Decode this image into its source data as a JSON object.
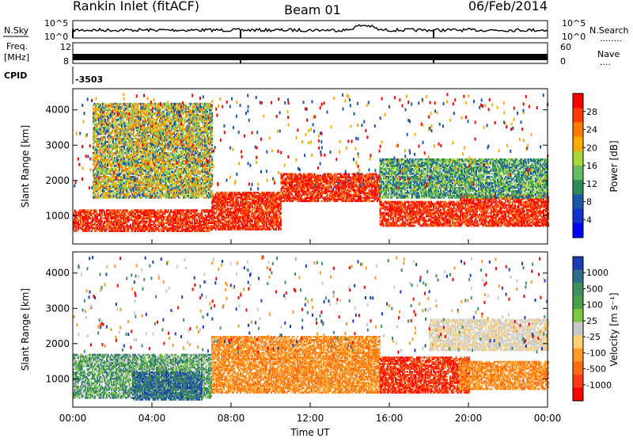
{
  "header": {
    "site": "Rankin Inlet (fitACF)",
    "beam": "Beam 01",
    "date": "06/Feb/2014"
  },
  "strip": {
    "nsky_label": "N.Sky",
    "nsky_ticks": [
      "10^5",
      "10^0"
    ],
    "nsearch_label": "N.Search",
    "nsearch_ticks": [
      "10^5",
      "10^0"
    ],
    "nsearch_dots": "........",
    "freq_label": "Freq.",
    "freq_unit": "[MHz]",
    "freq_ticks": [
      "12",
      "8"
    ],
    "nave_label": "Nave",
    "nave_ticks": [
      "60",
      "0"
    ],
    "nave_dots": "....",
    "cpid_label": "CPID",
    "cpid_value": "-3503"
  },
  "chart_data": [
    {
      "type": "heatmap",
      "panel": "power",
      "ylabel": "Slant Range [km]",
      "yticks": [
        1000,
        2000,
        3000,
        4000
      ],
      "ylim": [
        200,
        4600
      ],
      "xlim": [
        0,
        24
      ],
      "colorbar_label": "Power [dB]",
      "colorbar_ticks": [
        "28",
        "24",
        "20",
        "16",
        "12",
        "8",
        "4"
      ],
      "colorbar_colors": [
        "#ff0000",
        "#ff3a00",
        "#ff7a00",
        "#ffaa00",
        "#a8d838",
        "#66bb66",
        "#2e8b57",
        "#1a56a8",
        "#1030d0",
        "#0000ff"
      ],
      "bands": [
        {
          "t0": 0.0,
          "t1": 7.0,
          "r0": 550,
          "r1": 1150,
          "level": "high"
        },
        {
          "t0": 7.0,
          "t1": 10.5,
          "r0": 600,
          "r1": 1650,
          "level": "high"
        },
        {
          "t0": 10.5,
          "t1": 15.5,
          "r0": 1400,
          "r1": 2200,
          "level": "high"
        },
        {
          "t0": 15.5,
          "t1": 19.5,
          "r0": 700,
          "r1": 1400,
          "level": "high"
        },
        {
          "t0": 19.5,
          "t1": 24.0,
          "r0": 700,
          "r1": 1600,
          "level": "high"
        },
        {
          "t0": 15.5,
          "t1": 24.0,
          "r0": 1500,
          "r1": 2600,
          "level": "low"
        },
        {
          "t0": 1.0,
          "t1": 7.0,
          "r0": 1500,
          "r1": 4200,
          "level": "mid"
        }
      ]
    },
    {
      "type": "heatmap",
      "panel": "velocity",
      "ylabel": "Slant Range [km]",
      "yticks": [
        1000,
        2000,
        3000,
        4000
      ],
      "ylim": [
        200,
        4600
      ],
      "xlim": [
        0,
        24
      ],
      "xticks": [
        "00:00",
        "04:00",
        "08:00",
        "12:00",
        "16:00",
        "20:00",
        "00:00"
      ],
      "xlabel": "Time UT",
      "colorbar_label": "Velocity [m s⁻¹]",
      "colorbar_ticks": [
        "1000",
        "500",
        "100",
        "25",
        "-25",
        "-100",
        "-500",
        "-1000"
      ],
      "colorbar_colors": [
        "#1a3fb5",
        "#2e6e8a",
        "#3f8f5f",
        "#4aa048",
        "#7cc845",
        "#c8c8c8",
        "#ffd070",
        "#ff9a20",
        "#ff6a10",
        "#ff3a10",
        "#ff0000"
      ],
      "bands": [
        {
          "t0": 0.0,
          "t1": 7.0,
          "r0": 450,
          "r1": 1700,
          "level": "green"
        },
        {
          "t0": 3.0,
          "t1": 6.5,
          "r0": 400,
          "r1": 1200,
          "level": "blue"
        },
        {
          "t0": 7.0,
          "t1": 15.5,
          "r0": 600,
          "r1": 2200,
          "level": "orange"
        },
        {
          "t0": 15.5,
          "t1": 20.0,
          "r0": 600,
          "r1": 1600,
          "level": "red"
        },
        {
          "t0": 19.5,
          "t1": 24.0,
          "r0": 700,
          "r1": 1500,
          "level": "orange"
        },
        {
          "t0": 18.0,
          "t1": 24.0,
          "r0": 1800,
          "r1": 2700,
          "level": "grey"
        }
      ]
    }
  ]
}
